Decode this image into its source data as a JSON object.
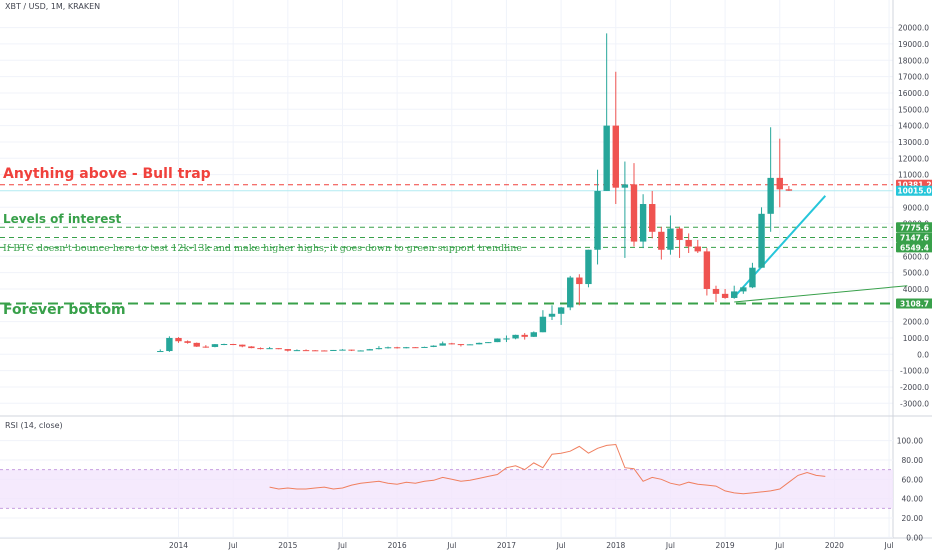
{
  "header": {
    "symbol_title": "XBT / USD, 1M, KRAKEN"
  },
  "rsi": {
    "title": "RSI (14, close)",
    "ticks": [
      "100.00",
      "80.00",
      "60.00",
      "40.00",
      "20.00",
      "0.00"
    ],
    "band_upper": 70,
    "band_lower": 30,
    "line_color": "#f07f5f",
    "band_color": "#f3e5fc",
    "values": [
      52,
      50,
      51,
      50,
      50,
      51,
      52,
      50,
      51,
      54,
      56,
      57,
      58,
      56,
      55,
      57,
      56,
      58,
      59,
      62,
      60,
      58,
      59,
      61,
      63,
      65,
      72,
      74,
      70,
      77,
      72,
      86,
      87,
      89,
      94,
      87,
      92,
      95,
      96,
      72,
      71,
      58,
      62,
      60,
      56,
      54,
      57,
      55,
      54,
      53,
      48,
      46,
      45,
      46,
      47,
      48,
      50,
      57,
      64,
      67,
      64,
      63
    ]
  },
  "annotations": {
    "bull_trap": "Anything above - Bull trap",
    "levels_of_interest": "Levels of interest",
    "note": "If BTC doesn't bounce here to test 12k-13k and make higher highs, it goes down to green support trendline",
    "forever_bottom": "Forever bottom"
  },
  "colors": {
    "up": "#26a69a",
    "down": "#ef5350",
    "bull_line": "#f0413c",
    "support": "#38a04a",
    "trendline": "#26c6da",
    "grid": "#f0f3fa"
  },
  "chart_data": {
    "type": "candlestick",
    "title": "XBT / USD, 1M, KRAKEN",
    "ylim": [
      -3000,
      20000
    ],
    "y_ticks": [
      "20000.0",
      "19000.0",
      "18000.0",
      "17000.0",
      "16000.0",
      "15000.0",
      "14000.0",
      "13000.0",
      "12000.0",
      "11000.0",
      "9000.0",
      "8000.0",
      "7000.0",
      "6000.0",
      "5000.0",
      "4000.0",
      "2000.0",
      "1000.0",
      "0.0",
      "-1000.0",
      "-2000.0",
      "-3000.0"
    ],
    "x_ticks": [
      "2014",
      "Jul",
      "2015",
      "Jul",
      "2016",
      "Jul",
      "2017",
      "Jul",
      "2018",
      "Jul",
      "2019",
      "Jul",
      "2020",
      "Jul"
    ],
    "price_labels": [
      {
        "text": "10381.2",
        "value": 10381.2,
        "color": "#ef5350"
      },
      {
        "text": "10015.0",
        "value": 10015.0,
        "color": "#26c6da"
      },
      {
        "text": "7775.6",
        "value": 7775.6,
        "color": "#38a04a"
      },
      {
        "text": "7147.6",
        "value": 7147.6,
        "color": "#38a04a"
      },
      {
        "text": "6549.4",
        "value": 6549.4,
        "color": "#38a04a"
      },
      {
        "text": "3108.7",
        "value": 3108.7,
        "color": "#38a04a"
      }
    ],
    "levels": {
      "bull_trap": 10381.2,
      "interest": [
        7775.6,
        7147.6,
        6549.4
      ],
      "bottom": 3108.7
    },
    "trendlines": [
      {
        "name": "cyan",
        "from": [
          "2019-02",
          3500
        ],
        "to": [
          "2019-12",
          9700
        ]
      },
      {
        "name": "green",
        "from": [
          "2019-02",
          3200
        ],
        "to": [
          "2020-09",
          4200
        ]
      }
    ],
    "candles": [
      {
        "t": "2013-11",
        "o": 200,
        "h": 300,
        "l": 200,
        "c": 200
      },
      {
        "t": "2013-12",
        "o": 200,
        "h": 1100,
        "l": 150,
        "c": 1000
      },
      {
        "t": "2014-01",
        "o": 1000,
        "h": 1050,
        "l": 700,
        "c": 800
      },
      {
        "t": "2014-02",
        "o": 800,
        "h": 850,
        "l": 650,
        "c": 700
      },
      {
        "t": "2014-03",
        "o": 700,
        "h": 720,
        "l": 450,
        "c": 470
      },
      {
        "t": "2014-04",
        "o": 470,
        "h": 560,
        "l": 400,
        "c": 450
      },
      {
        "t": "2014-05",
        "o": 450,
        "h": 630,
        "l": 430,
        "c": 620
      },
      {
        "t": "2014-06",
        "o": 620,
        "h": 650,
        "l": 560,
        "c": 630
      },
      {
        "t": "2014-07",
        "o": 630,
        "h": 640,
        "l": 560,
        "c": 590
      },
      {
        "t": "2014-08",
        "o": 590,
        "h": 600,
        "l": 430,
        "c": 480
      },
      {
        "t": "2014-09",
        "o": 480,
        "h": 500,
        "l": 370,
        "c": 380
      },
      {
        "t": "2014-10",
        "o": 380,
        "h": 420,
        "l": 300,
        "c": 340
      },
      {
        "t": "2014-11",
        "o": 340,
        "h": 450,
        "l": 330,
        "c": 375
      },
      {
        "t": "2014-12",
        "o": 375,
        "h": 380,
        "l": 310,
        "c": 320
      },
      {
        "t": "2015-01",
        "o": 320,
        "h": 320,
        "l": 170,
        "c": 220
      },
      {
        "t": "2015-02",
        "o": 220,
        "h": 300,
        "l": 210,
        "c": 255
      },
      {
        "t": "2015-03",
        "o": 255,
        "h": 300,
        "l": 240,
        "c": 245
      },
      {
        "t": "2015-04",
        "o": 245,
        "h": 260,
        "l": 215,
        "c": 235
      },
      {
        "t": "2015-05",
        "o": 235,
        "h": 245,
        "l": 225,
        "c": 230
      },
      {
        "t": "2015-06",
        "o": 230,
        "h": 265,
        "l": 220,
        "c": 265
      },
      {
        "t": "2015-07",
        "o": 265,
        "h": 315,
        "l": 255,
        "c": 285
      },
      {
        "t": "2015-08",
        "o": 285,
        "h": 285,
        "l": 200,
        "c": 230
      },
      {
        "t": "2015-09",
        "o": 230,
        "h": 245,
        "l": 225,
        "c": 235
      },
      {
        "t": "2015-10",
        "o": 235,
        "h": 330,
        "l": 235,
        "c": 315
      },
      {
        "t": "2015-11",
        "o": 315,
        "h": 500,
        "l": 300,
        "c": 380
      },
      {
        "t": "2015-12",
        "o": 380,
        "h": 470,
        "l": 350,
        "c": 430
      },
      {
        "t": "2016-01",
        "o": 430,
        "h": 460,
        "l": 350,
        "c": 370
      },
      {
        "t": "2016-02",
        "o": 370,
        "h": 450,
        "l": 365,
        "c": 435
      },
      {
        "t": "2016-03",
        "o": 435,
        "h": 440,
        "l": 400,
        "c": 415
      },
      {
        "t": "2016-04",
        "o": 415,
        "h": 465,
        "l": 415,
        "c": 450
      },
      {
        "t": "2016-05",
        "o": 450,
        "h": 550,
        "l": 440,
        "c": 530
      },
      {
        "t": "2016-06",
        "o": 530,
        "h": 780,
        "l": 530,
        "c": 670
      },
      {
        "t": "2016-07",
        "o": 670,
        "h": 700,
        "l": 600,
        "c": 625
      },
      {
        "t": "2016-08",
        "o": 625,
        "h": 625,
        "l": 480,
        "c": 575
      },
      {
        "t": "2016-09",
        "o": 575,
        "h": 615,
        "l": 570,
        "c": 610
      },
      {
        "t": "2016-10",
        "o": 610,
        "h": 720,
        "l": 605,
        "c": 700
      },
      {
        "t": "2016-11",
        "o": 700,
        "h": 750,
        "l": 690,
        "c": 745
      },
      {
        "t": "2016-12",
        "o": 745,
        "h": 975,
        "l": 745,
        "c": 965
      },
      {
        "t": "2017-01",
        "o": 965,
        "h": 1150,
        "l": 750,
        "c": 970
      },
      {
        "t": "2017-02",
        "o": 970,
        "h": 1200,
        "l": 920,
        "c": 1190
      },
      {
        "t": "2017-03",
        "o": 1190,
        "h": 1300,
        "l": 900,
        "c": 1070
      },
      {
        "t": "2017-04",
        "o": 1070,
        "h": 1400,
        "l": 1060,
        "c": 1350
      },
      {
        "t": "2017-05",
        "o": 1350,
        "h": 2700,
        "l": 1350,
        "c": 2300
      },
      {
        "t": "2017-06",
        "o": 2300,
        "h": 3000,
        "l": 2100,
        "c": 2480
      },
      {
        "t": "2017-07",
        "o": 2480,
        "h": 2900,
        "l": 1800,
        "c": 2870
      },
      {
        "t": "2017-08",
        "o": 2870,
        "h": 4800,
        "l": 2700,
        "c": 4700
      },
      {
        "t": "2017-09",
        "o": 4700,
        "h": 4900,
        "l": 3000,
        "c": 4300
      },
      {
        "t": "2017-10",
        "o": 4300,
        "h": 6400,
        "l": 4100,
        "c": 6400
      },
      {
        "t": "2017-11",
        "o": 6400,
        "h": 11300,
        "l": 5500,
        "c": 10000
      },
      {
        "t": "2017-12",
        "o": 10000,
        "h": 19650,
        "l": 10000,
        "c": 14000
      },
      {
        "t": "2018-01",
        "o": 14000,
        "h": 17300,
        "l": 9200,
        "c": 10200
      },
      {
        "t": "2018-02",
        "o": 10200,
        "h": 11800,
        "l": 5900,
        "c": 10400
      },
      {
        "t": "2018-03",
        "o": 10400,
        "h": 11700,
        "l": 6600,
        "c": 6900
      },
      {
        "t": "2018-04",
        "o": 6900,
        "h": 9800,
        "l": 6500,
        "c": 9200
      },
      {
        "t": "2018-05",
        "o": 9200,
        "h": 10000,
        "l": 7100,
        "c": 7500
      },
      {
        "t": "2018-06",
        "o": 7500,
        "h": 7800,
        "l": 5800,
        "c": 6400
      },
      {
        "t": "2018-07",
        "o": 6400,
        "h": 8500,
        "l": 6100,
        "c": 7700
      },
      {
        "t": "2018-08",
        "o": 7700,
        "h": 7800,
        "l": 5900,
        "c": 7000
      },
      {
        "t": "2018-09",
        "o": 7000,
        "h": 7400,
        "l": 6200,
        "c": 6600
      },
      {
        "t": "2018-10",
        "o": 6600,
        "h": 7000,
        "l": 6200,
        "c": 6300
      },
      {
        "t": "2018-11",
        "o": 6300,
        "h": 6500,
        "l": 3600,
        "c": 4000
      },
      {
        "t": "2018-12",
        "o": 4000,
        "h": 4200,
        "l": 3200,
        "c": 3700
      },
      {
        "t": "2019-01",
        "o": 3700,
        "h": 4000,
        "l": 3400,
        "c": 3450
      },
      {
        "t": "2019-02",
        "o": 3450,
        "h": 4200,
        "l": 3400,
        "c": 3850
      },
      {
        "t": "2019-03",
        "o": 3850,
        "h": 4150,
        "l": 3700,
        "c": 4100
      },
      {
        "t": "2019-04",
        "o": 4100,
        "h": 5600,
        "l": 4050,
        "c": 5300
      },
      {
        "t": "2019-05",
        "o": 5300,
        "h": 9000,
        "l": 5300,
        "c": 8600
      },
      {
        "t": "2019-06",
        "o": 8600,
        "h": 13900,
        "l": 7500,
        "c": 10800
      },
      {
        "t": "2019-07",
        "o": 10800,
        "h": 13200,
        "l": 9000,
        "c": 10100
      },
      {
        "t": "2019-08",
        "o": 10100,
        "h": 10300,
        "l": 10000,
        "c": 10015
      }
    ]
  }
}
